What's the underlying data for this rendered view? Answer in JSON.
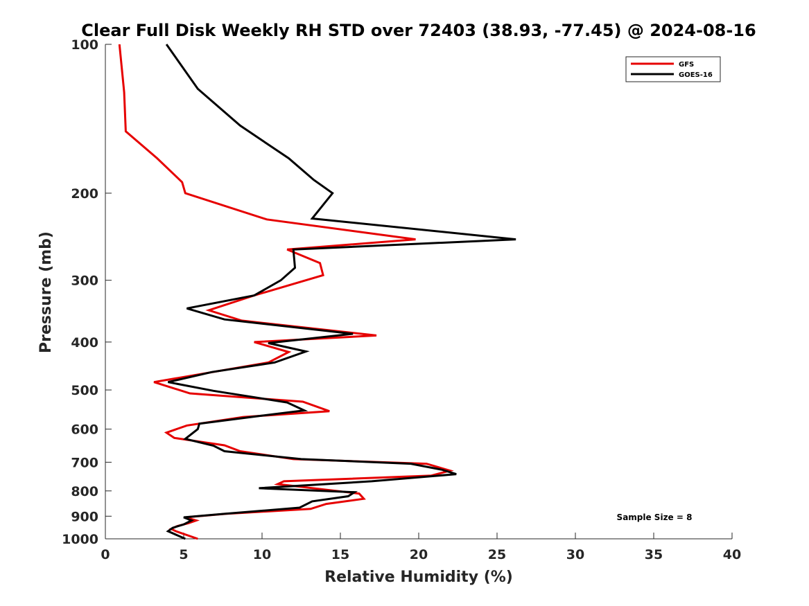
{
  "chart_data": {
    "type": "line",
    "title": "Clear Full Disk Weekly RH STD over 72403 (38.93, -77.45) @ 2024-08-16",
    "xlabel": "Relative Humidity (%)",
    "ylabel": "Pressure (mb)",
    "xlim": [
      0,
      40
    ],
    "ylim": [
      100,
      1000
    ],
    "y_scale": "log",
    "y_reversed": true,
    "x_ticks": [
      0,
      5,
      10,
      15,
      20,
      25,
      30,
      35,
      40
    ],
    "y_ticks": [
      100,
      200,
      300,
      400,
      500,
      600,
      700,
      800,
      900,
      1000
    ],
    "grid": false,
    "legend_position": "top-right",
    "annotation": "Sample Size = 8",
    "series": [
      {
        "name": "GFS",
        "color": "#e60000",
        "points": [
          [
            0.9,
            100
          ],
          [
            1.2,
            125
          ],
          [
            1.3,
            150
          ],
          [
            3.3,
            170
          ],
          [
            4.9,
            190
          ],
          [
            5.1,
            200
          ],
          [
            10.3,
            226
          ],
          [
            19.8,
            248
          ],
          [
            11.6,
            260
          ],
          [
            13.7,
            277
          ],
          [
            13.9,
            293
          ],
          [
            9.5,
            322
          ],
          [
            6.6,
            345
          ],
          [
            8.7,
            362
          ],
          [
            17.3,
            388
          ],
          [
            9.5,
            400
          ],
          [
            11.7,
            419
          ],
          [
            10.4,
            440
          ],
          [
            3.1,
            482
          ],
          [
            5.4,
            508
          ],
          [
            12.6,
            528
          ],
          [
            14.3,
            552
          ],
          [
            8.8,
            567
          ],
          [
            5.2,
            590
          ],
          [
            3.9,
            610
          ],
          [
            4.4,
            625
          ],
          [
            7.6,
            647
          ],
          [
            8.6,
            665
          ],
          [
            12.0,
            690
          ],
          [
            20.5,
            705
          ],
          [
            22.0,
            728
          ],
          [
            20.8,
            745
          ],
          [
            11.4,
            765
          ],
          [
            11.0,
            775
          ],
          [
            16.2,
            810
          ],
          [
            16.5,
            830
          ],
          [
            14.1,
            850
          ],
          [
            13.1,
            870
          ],
          [
            7.7,
            890
          ],
          [
            5.1,
            905
          ],
          [
            5.8,
            918
          ],
          [
            5.3,
            930
          ],
          [
            4.6,
            942
          ],
          [
            4.2,
            955
          ],
          [
            4.5,
            965
          ],
          [
            5.9,
            1000
          ]
        ]
      },
      {
        "name": "GOES-16",
        "color": "#000000",
        "points": [
          [
            3.9,
            100
          ],
          [
            5.9,
            123
          ],
          [
            8.6,
            146
          ],
          [
            11.7,
            170
          ],
          [
            13.3,
            188
          ],
          [
            14.5,
            200
          ],
          [
            13.2,
            225
          ],
          [
            26.2,
            248
          ],
          [
            12.0,
            260
          ],
          [
            12.1,
            283
          ],
          [
            11.2,
            300
          ],
          [
            9.5,
            322
          ],
          [
            5.2,
            342
          ],
          [
            7.6,
            360
          ],
          [
            15.8,
            385
          ],
          [
            10.4,
            402
          ],
          [
            12.8,
            418
          ],
          [
            10.8,
            440
          ],
          [
            6.8,
            460
          ],
          [
            4.0,
            482
          ],
          [
            6.9,
            502
          ],
          [
            11.6,
            530
          ],
          [
            12.7,
            550
          ],
          [
            9.7,
            565
          ],
          [
            6.0,
            585
          ],
          [
            5.9,
            600
          ],
          [
            5.1,
            628
          ],
          [
            6.9,
            648
          ],
          [
            7.6,
            665
          ],
          [
            12.5,
            690
          ],
          [
            19.5,
            705
          ],
          [
            21.5,
            725
          ],
          [
            22.4,
            740
          ],
          [
            17.0,
            765
          ],
          [
            9.8,
            790
          ],
          [
            15.9,
            805
          ],
          [
            15.5,
            820
          ],
          [
            13.2,
            840
          ],
          [
            12.4,
            865
          ],
          [
            7.6,
            890
          ],
          [
            5.0,
            905
          ],
          [
            5.5,
            918
          ],
          [
            5.0,
            935
          ],
          [
            4.3,
            950
          ],
          [
            4.0,
            965
          ],
          [
            5.1,
            1000
          ]
        ]
      }
    ]
  }
}
